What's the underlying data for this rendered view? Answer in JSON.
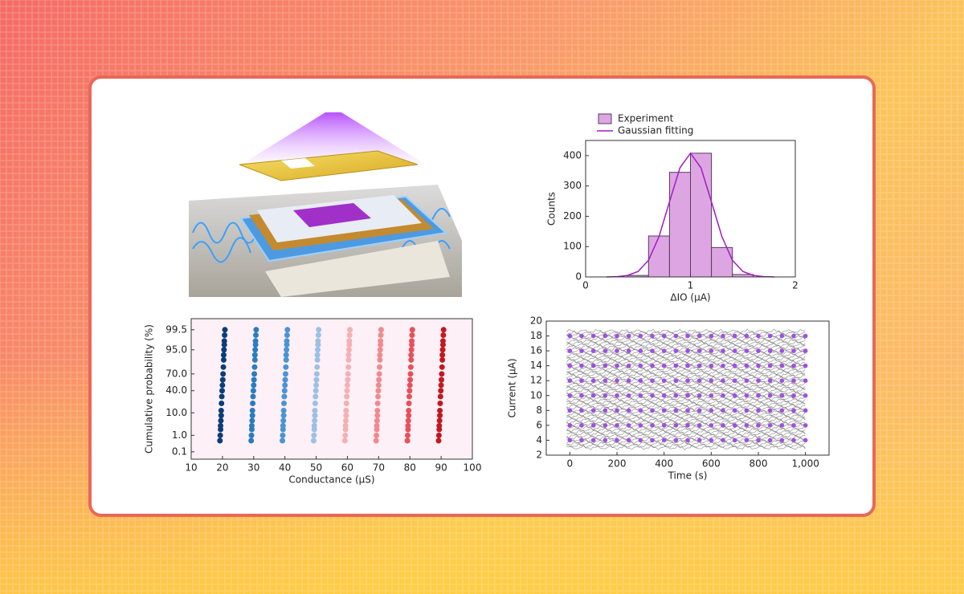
{
  "chart_data": [
    {
      "type": "histogram",
      "name": "Experiment",
      "color": "#dda6e2",
      "edge": "#5a3a60",
      "bins": [
        0.4,
        0.6,
        0.8,
        1.0,
        1.2,
        1.4,
        1.6
      ],
      "values": [
        5,
        135,
        345,
        408,
        97,
        8
      ],
      "series": [
        {
          "name": "Gaussian fitting",
          "color": "#a21cc2",
          "x": [
            0.2,
            0.3,
            0.4,
            0.5,
            0.6,
            0.7,
            0.8,
            0.9,
            1.0,
            1.1,
            1.2,
            1.3,
            1.4,
            1.5,
            1.6,
            1.7,
            1.8
          ],
          "values": [
            0,
            1,
            5,
            18,
            55,
            133,
            248,
            360,
            408,
            360,
            248,
            133,
            55,
            18,
            5,
            1,
            0
          ]
        }
      ],
      "xlabel": "ΔIO (μA)",
      "ylabel": "Counts",
      "xlim": [
        0,
        2
      ],
      "xticks": [
        0,
        1,
        2
      ],
      "ylim": [
        0,
        450
      ],
      "yticks": [
        0,
        100,
        200,
        300,
        400
      ]
    },
    {
      "type": "scatter",
      "yscale": "probit",
      "background": "#fdf0f6",
      "xlabel": "Conductance (μS)",
      "ylabel": "Cumulative probability (%)",
      "xlim": [
        10,
        100
      ],
      "xticks": [
        10,
        20,
        30,
        40,
        50,
        60,
        70,
        80,
        90,
        100
      ],
      "ylim": [
        0.03,
        99.9
      ],
      "yticks": [
        0.1,
        {
          "value": 1,
          "label": "1.0"
        },
        {
          "value": 10,
          "label": "10.0"
        },
        {
          "value": 40,
          "label": "40.0"
        },
        {
          "value": 70,
          "label": "70.0"
        },
        {
          "value": 95,
          "label": "95.0"
        },
        99.5
      ],
      "series": [
        {
          "color": "#0b3d7a",
          "x": [
            19.2,
            19.3,
            19.4,
            19.4,
            19.5,
            19.6,
            19.6,
            19.7,
            19.8,
            19.9,
            20,
            20.1,
            20.2,
            20.3,
            20.4,
            20.4,
            20.5,
            20.6,
            20.6,
            20.7,
            20.8
          ],
          "values": [
            0.5,
            1,
            2,
            3,
            5,
            8,
            12,
            20,
            30,
            40,
            50,
            60,
            70,
            80,
            88,
            92,
            95,
            97,
            98,
            99,
            99.5
          ]
        },
        {
          "color": "#2a7cc0",
          "x": [
            29.2,
            29.3,
            29.4,
            29.4,
            29.5,
            29.6,
            29.6,
            29.7,
            29.8,
            29.9,
            30,
            30.1,
            30.2,
            30.3,
            30.4,
            30.4,
            30.5,
            30.6,
            30.6,
            30.7,
            30.8
          ],
          "values": [
            0.5,
            1,
            2,
            3,
            5,
            8,
            12,
            20,
            30,
            40,
            50,
            60,
            70,
            80,
            88,
            92,
            95,
            97,
            98,
            99,
            99.5
          ]
        },
        {
          "color": "#4a94d4",
          "x": [
            39.2,
            39.3,
            39.4,
            39.4,
            39.5,
            39.6,
            39.6,
            39.7,
            39.8,
            39.9,
            40,
            40.1,
            40.2,
            40.3,
            40.4,
            40.4,
            40.5,
            40.6,
            40.6,
            40.7,
            40.8
          ],
          "values": [
            0.5,
            1,
            2,
            3,
            5,
            8,
            12,
            20,
            30,
            40,
            50,
            60,
            70,
            80,
            88,
            92,
            95,
            97,
            98,
            99,
            99.5
          ]
        },
        {
          "color": "#9cc0e6",
          "x": [
            49.2,
            49.3,
            49.4,
            49.4,
            49.5,
            49.6,
            49.6,
            49.7,
            49.8,
            49.9,
            50,
            50.1,
            50.2,
            50.3,
            50.4,
            50.4,
            50.5,
            50.6,
            50.6,
            50.7,
            50.8
          ],
          "values": [
            0.5,
            1,
            2,
            3,
            5,
            8,
            12,
            20,
            30,
            40,
            50,
            60,
            70,
            80,
            88,
            92,
            95,
            97,
            98,
            99,
            99.5
          ]
        },
        {
          "color": "#f4b0b4",
          "x": [
            59.2,
            59.3,
            59.4,
            59.4,
            59.5,
            59.6,
            59.6,
            59.7,
            59.8,
            59.9,
            60,
            60.1,
            60.2,
            60.3,
            60.4,
            60.4,
            60.5,
            60.6,
            60.6,
            60.7,
            60.8
          ],
          "values": [
            0.5,
            1,
            2,
            3,
            5,
            8,
            12,
            20,
            30,
            40,
            50,
            60,
            70,
            80,
            88,
            92,
            95,
            97,
            98,
            99,
            99.5
          ]
        },
        {
          "color": "#f08a90",
          "x": [
            69.2,
            69.3,
            69.4,
            69.4,
            69.5,
            69.6,
            69.6,
            69.7,
            69.8,
            69.9,
            70,
            70.1,
            70.2,
            70.3,
            70.4,
            70.4,
            70.5,
            70.6,
            70.6,
            70.7,
            70.8
          ],
          "values": [
            0.5,
            1,
            2,
            3,
            5,
            8,
            12,
            20,
            30,
            40,
            50,
            60,
            70,
            80,
            88,
            92,
            95,
            97,
            98,
            99,
            99.5
          ]
        },
        {
          "color": "#e8505a",
          "x": [
            79.2,
            79.3,
            79.4,
            79.4,
            79.5,
            79.6,
            79.6,
            79.7,
            79.8,
            79.9,
            80,
            80.1,
            80.2,
            80.3,
            80.4,
            80.4,
            80.5,
            80.6,
            80.6,
            80.7,
            80.8
          ],
          "values": [
            0.5,
            1,
            2,
            3,
            5,
            8,
            12,
            20,
            30,
            40,
            50,
            60,
            70,
            80,
            88,
            92,
            95,
            97,
            98,
            99,
            99.5
          ]
        },
        {
          "color": "#c41820",
          "x": [
            89.2,
            89.3,
            89.4,
            89.4,
            89.5,
            89.6,
            89.6,
            89.7,
            89.8,
            89.9,
            90,
            90.1,
            90.2,
            90.3,
            90.4,
            90.4,
            90.5,
            90.6,
            90.6,
            90.7,
            90.8
          ],
          "values": [
            0.5,
            1,
            2,
            3,
            5,
            8,
            12,
            20,
            30,
            40,
            50,
            60,
            70,
            80,
            88,
            92,
            95,
            97,
            98,
            99,
            99.5
          ]
        }
      ]
    },
    {
      "type": "scatter",
      "xlabel": "Time (s)",
      "ylabel": "Current (μA)",
      "xlim": [
        -100,
        1100
      ],
      "xticks": [
        0,
        200,
        400,
        600,
        800,
        {
          "value": 1000,
          "label": "1,000"
        }
      ],
      "ylim": [
        2,
        20
      ],
      "yticks": [
        2,
        4,
        6,
        8,
        10,
        12,
        14,
        16,
        18,
        20
      ],
      "x": [
        0,
        50,
        100,
        150,
        200,
        250,
        300,
        350,
        400,
        450,
        500,
        550,
        600,
        650,
        700,
        750,
        800,
        850,
        900,
        950,
        1000
      ],
      "series": [
        {
          "color": "#a050e0",
          "values": [
            4,
            4,
            4,
            4,
            4,
            4,
            4,
            4,
            4,
            4,
            4,
            4,
            4,
            4,
            4,
            4,
            4,
            4,
            4,
            4,
            4
          ]
        },
        {
          "color": "#a050e0",
          "values": [
            6,
            6,
            6,
            6,
            6,
            6,
            6,
            6,
            6,
            6,
            6,
            6,
            6,
            6,
            6,
            6,
            6,
            6,
            6,
            6,
            6
          ]
        },
        {
          "color": "#a050e0",
          "values": [
            8,
            8,
            8,
            8,
            8,
            8,
            8,
            8,
            8,
            8,
            8,
            8,
            8,
            8,
            8,
            8,
            8,
            8,
            8,
            8,
            8
          ]
        },
        {
          "color": "#a050e0",
          "values": [
            10,
            10,
            10,
            10,
            10,
            10,
            10,
            10,
            10,
            10,
            10,
            10,
            10,
            10,
            10,
            10,
            10,
            10,
            10,
            10,
            10
          ]
        },
        {
          "color": "#a050e0",
          "values": [
            12,
            12,
            12,
            12,
            12,
            12,
            12,
            12,
            12,
            12,
            12,
            12,
            12,
            12,
            12,
            12,
            12,
            12,
            12,
            12,
            12
          ]
        },
        {
          "color": "#a050e0",
          "values": [
            14,
            14,
            14,
            14,
            14,
            14,
            14,
            14,
            14,
            14,
            14,
            14,
            14,
            14,
            14,
            14,
            14,
            14,
            14,
            14,
            14
          ]
        },
        {
          "color": "#a050e0",
          "values": [
            16,
            16,
            16,
            16,
            16,
            16,
            16,
            16,
            16,
            16,
            16,
            16,
            16,
            16,
            16,
            16,
            16,
            16,
            16,
            16,
            16
          ]
        },
        {
          "color": "#a050e0",
          "values": [
            18,
            18,
            18,
            18,
            18,
            18,
            18,
            18,
            18,
            18,
            18,
            18,
            18,
            18,
            18,
            18,
            18,
            18,
            18,
            18,
            18
          ]
        }
      ]
    }
  ]
}
